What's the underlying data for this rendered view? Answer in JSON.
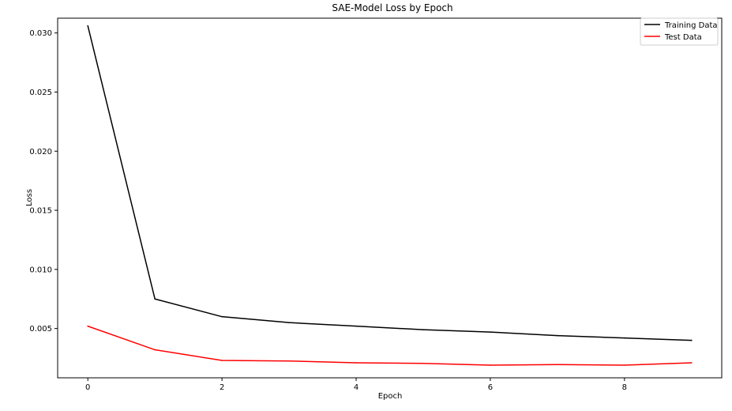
{
  "chart_data": {
    "type": "line",
    "title": "SAE-Model Loss by Epoch",
    "xlabel": "Epoch",
    "ylabel": "Loss",
    "x": [
      0,
      1,
      2,
      3,
      4,
      5,
      6,
      7,
      8,
      9
    ],
    "xlim": [
      -0.45,
      9.45
    ],
    "ylim": [
      0.00083,
      0.03125
    ],
    "xticks": [
      0,
      2,
      4,
      6,
      8
    ],
    "xtick_labels": [
      "0",
      "2",
      "4",
      "6",
      "8"
    ],
    "yticks": [
      0.005,
      0.01,
      0.015,
      0.02,
      0.025,
      0.03
    ],
    "ytick_labels": [
      "0.005",
      "0.010",
      "0.015",
      "0.020",
      "0.025",
      "0.030"
    ],
    "grid": false,
    "legend_position": "top-right",
    "series": [
      {
        "name": "Training Data",
        "color": "#000000",
        "values": [
          0.0306,
          0.0075,
          0.006,
          0.0055,
          0.0052,
          0.0049,
          0.0047,
          0.0044,
          0.0042,
          0.004
        ]
      },
      {
        "name": "Test Data",
        "color": "#ff0000",
        "values": [
          0.0052,
          0.0032,
          0.0023,
          0.00225,
          0.0021,
          0.00205,
          0.0019,
          0.00195,
          0.0019,
          0.0021
        ]
      }
    ]
  }
}
